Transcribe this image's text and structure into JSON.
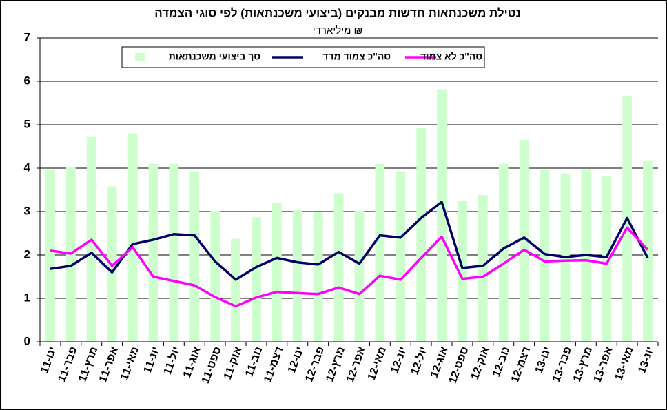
{
  "chart_data": {
    "type": "bar",
    "title": "נטילת משכנתאות חדשות מבנקים (ביצועי משכנתאות) לפי סוגי הצמדה",
    "subtitle": "מיליארדי ₪",
    "categories": [
      "ינו-11",
      "פבר-11",
      "מרץ-11",
      "אפר-11",
      "מאי-11",
      "יונ-11",
      "יול-11",
      "אוג-11",
      "ספט-11",
      "אוק-11",
      "נוב-11",
      "דצמ-11",
      "ינו-12",
      "פבר-12",
      "מרץ-12",
      "אפר-12",
      "מאי-12",
      "יונ-12",
      "יול-12",
      "אוג-12",
      "ספט-12",
      "אוק-12",
      "נוב-12",
      "דצמ-12",
      "ינו-13",
      "פבר-13",
      "מרץ-13",
      "אפר-13",
      "מאי-13",
      "יונ-13"
    ],
    "series": [
      {
        "name": "סך ביצועי משכנתאות",
        "type": "bar",
        "color": "#ccffcc",
        "values": [
          3.97,
          4.02,
          4.72,
          3.58,
          4.8,
          4.1,
          4.1,
          3.93,
          3.02,
          2.37,
          2.87,
          3.2,
          3.03,
          3.0,
          3.42,
          3.02,
          4.1,
          3.93,
          4.92,
          5.82,
          3.25,
          3.38,
          4.1,
          4.65,
          3.97,
          3.88,
          3.98,
          3.82,
          5.65,
          4.18
        ]
      },
      {
        "name": "סה\"כ צמוד מדד",
        "type": "line",
        "color": "#000066",
        "values": [
          1.68,
          1.75,
          2.05,
          1.6,
          2.25,
          2.35,
          2.48,
          2.45,
          1.85,
          1.43,
          1.72,
          1.93,
          1.83,
          1.78,
          2.07,
          1.8,
          2.45,
          2.4,
          2.85,
          3.22,
          1.7,
          1.75,
          2.15,
          2.4,
          2.02,
          1.95,
          2.0,
          1.95,
          2.85,
          1.93
        ]
      },
      {
        "name": "סה\"כ לא צמוד",
        "type": "line",
        "color": "#ff00ff",
        "values": [
          2.1,
          2.03,
          2.35,
          1.75,
          2.18,
          1.5,
          1.4,
          1.3,
          1.03,
          0.82,
          1.02,
          1.15,
          1.12,
          1.1,
          1.25,
          1.1,
          1.52,
          1.43,
          1.93,
          2.42,
          1.45,
          1.5,
          1.8,
          2.12,
          1.85,
          1.87,
          1.88,
          1.8,
          2.63,
          2.12
        ]
      }
    ],
    "ylim": [
      0,
      7
    ],
    "yticks": [
      0,
      1,
      2,
      3,
      4,
      5,
      6,
      7
    ],
    "grid": true
  }
}
